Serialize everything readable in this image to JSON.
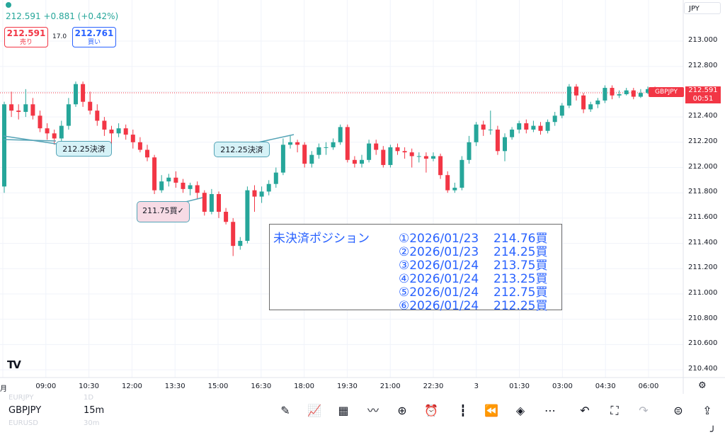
{
  "header": {
    "quote": "212.591 +0.881 (+0.42%)",
    "sell_price": "212.591",
    "sell_label": "売り",
    "spread": "17.0",
    "buy_price": "212.761",
    "buy_label": "買い",
    "currency": "JPY"
  },
  "price_tag": {
    "symbol": "GBPJPY",
    "last_price": "212.591",
    "countdown": "00:51"
  },
  "callouts": {
    "c1": "212.25決済",
    "c2": "212.25決済",
    "c3": "211.75買✓"
  },
  "positions": {
    "title": "未決済ポジション",
    "rows": [
      {
        "date": "①2026/01/23",
        "price": "214.76買"
      },
      {
        "date": "②2026/01/23",
        "price": "214.25買"
      },
      {
        "date": "③2026/01/24",
        "price": "213.75買"
      },
      {
        "date": "④2026/01/24",
        "price": "213.25買"
      },
      {
        "date": "⑤2026/01/24",
        "price": "212.75買"
      },
      {
        "date": "⑥2026/01/24",
        "price": "212.25買"
      }
    ]
  },
  "footer": {
    "watch_prev": "EURJPY",
    "watch_prev_tf": "1D",
    "symbol": "GBPJPY",
    "timeframe": "15m",
    "watch_next": "EURUSD",
    "watch_next_tf": "30m"
  },
  "toolbar_icons": [
    "draw-icon",
    "indicators-icon",
    "templates-icon",
    "compare-icon",
    "add-icon",
    "alert-icon",
    "candle-type-icon",
    "replay-icon",
    "layers-icon",
    "more-icon",
    "undo-icon",
    "fullscreen-icon",
    "redo-icon",
    "share-icon",
    "export-icon"
  ],
  "colors": {
    "up": "#26a69a",
    "down": "#f23645",
    "accent": "#2962ff"
  },
  "chart_data": {
    "type": "candlestick",
    "symbol": "GBPJPY",
    "interval": "15m",
    "y_ticks": [
      "213.000",
      "212.800",
      "212.600",
      "212.400",
      "212.200",
      "212.000",
      "211.800",
      "211.600",
      "211.400",
      "211.200",
      "211.000",
      "210.800",
      "210.600",
      "210.400"
    ],
    "x_ticks": [
      "月",
      "09:00",
      "10:30",
      "12:00",
      "13:30",
      "15:00",
      "16:30",
      "18:00",
      "19:30",
      "21:00",
      "22:30",
      "3",
      "01:30",
      "03:00",
      "04:30",
      "06:00"
    ],
    "ylim": [
      210.35,
      213.2
    ],
    "last_price": 212.591,
    "candles": [
      [
        211.85,
        212.5,
        212.52,
        211.8
      ],
      [
        212.5,
        212.45,
        212.6,
        212.4
      ],
      [
        212.45,
        212.44,
        212.5,
        212.38
      ],
      [
        212.44,
        212.5,
        212.62,
        212.4
      ],
      [
        212.5,
        212.41,
        212.55,
        212.38
      ],
      [
        212.41,
        212.31,
        212.45,
        212.28
      ],
      [
        212.31,
        212.27,
        212.35,
        212.22
      ],
      [
        212.27,
        212.23,
        212.3,
        212.18
      ],
      [
        212.23,
        212.33,
        212.37,
        212.2
      ],
      [
        212.33,
        212.5,
        212.55,
        212.3
      ],
      [
        212.5,
        212.66,
        212.68,
        212.48
      ],
      [
        212.66,
        212.52,
        212.68,
        212.48
      ],
      [
        212.52,
        212.45,
        212.6,
        212.42
      ],
      [
        212.45,
        212.37,
        212.5,
        212.33
      ],
      [
        212.37,
        212.3,
        212.4,
        212.25
      ],
      [
        212.3,
        212.27,
        212.33,
        212.18
      ],
      [
        212.27,
        212.31,
        212.35,
        212.24
      ],
      [
        212.31,
        212.26,
        212.34,
        212.22
      ],
      [
        212.26,
        212.2,
        212.3,
        212.15
      ],
      [
        212.2,
        212.14,
        212.24,
        212.12
      ],
      [
        212.14,
        212.08,
        212.18,
        212.05
      ],
      [
        212.08,
        211.82,
        212.1,
        211.79
      ],
      [
        211.82,
        211.89,
        211.94,
        211.8
      ],
      [
        211.89,
        211.92,
        211.95,
        211.85
      ],
      [
        211.92,
        211.88,
        211.97,
        211.84
      ],
      [
        211.88,
        211.83,
        211.91,
        211.8
      ],
      [
        211.83,
        211.86,
        211.88,
        211.78
      ],
      [
        211.86,
        211.8,
        211.89,
        211.75
      ],
      [
        211.8,
        211.65,
        211.82,
        211.62
      ],
      [
        211.65,
        211.79,
        211.83,
        211.63
      ],
      [
        211.79,
        211.65,
        211.81,
        211.6
      ],
      [
        211.65,
        211.57,
        211.68,
        211.55
      ],
      [
        211.57,
        211.38,
        211.6,
        211.3
      ],
      [
        211.38,
        211.42,
        211.45,
        211.35
      ],
      [
        211.42,
        211.82,
        211.85,
        211.4
      ],
      [
        211.82,
        211.77,
        211.86,
        211.65
      ],
      [
        211.77,
        211.81,
        211.85,
        211.72
      ],
      [
        211.81,
        211.87,
        211.9,
        211.78
      ],
      [
        211.87,
        211.96,
        212.0,
        211.84
      ],
      [
        211.96,
        212.18,
        212.23,
        211.94
      ],
      [
        212.18,
        212.2,
        212.25,
        212.15
      ],
      [
        212.2,
        212.18,
        212.22,
        212.12
      ],
      [
        212.18,
        212.03,
        212.2,
        212.0
      ],
      [
        212.03,
        212.1,
        212.13,
        212.0
      ],
      [
        212.1,
        212.16,
        212.19,
        212.07
      ],
      [
        212.16,
        212.16,
        212.2,
        212.1
      ],
      [
        212.16,
        212.2,
        212.23,
        212.14
      ],
      [
        212.2,
        212.32,
        212.34,
        212.18
      ],
      [
        212.32,
        212.06,
        212.34,
        212.04
      ],
      [
        212.06,
        212.03,
        212.09,
        212.0
      ],
      [
        212.03,
        212.06,
        212.1,
        212.0
      ],
      [
        212.06,
        212.19,
        212.22,
        212.04
      ],
      [
        212.19,
        212.14,
        212.22,
        212.1
      ],
      [
        212.14,
        212.02,
        212.17,
        212.0
      ],
      [
        212.02,
        212.16,
        212.18,
        212.0
      ],
      [
        212.16,
        212.13,
        212.19,
        212.1
      ],
      [
        212.13,
        212.12,
        212.16,
        212.07
      ],
      [
        212.12,
        212.09,
        212.15,
        212.0
      ],
      [
        212.09,
        212.09,
        212.12,
        212.04
      ],
      [
        212.09,
        212.07,
        212.12,
        211.96
      ],
      [
        212.07,
        212.09,
        212.12,
        212.05
      ],
      [
        212.09,
        211.94,
        212.11,
        211.91
      ],
      [
        211.94,
        211.82,
        211.97,
        211.8
      ],
      [
        211.82,
        211.84,
        211.88,
        211.8
      ],
      [
        211.84,
        212.06,
        212.09,
        211.82
      ],
      [
        212.06,
        212.2,
        212.25,
        212.03
      ],
      [
        212.2,
        212.34,
        212.36,
        212.17
      ],
      [
        212.34,
        212.3,
        212.37,
        212.25
      ],
      [
        212.3,
        212.3,
        212.45,
        212.26
      ],
      [
        212.3,
        212.13,
        212.33,
        212.1
      ],
      [
        212.13,
        212.24,
        212.27,
        212.05
      ],
      [
        212.24,
        212.3,
        212.32,
        212.22
      ],
      [
        212.3,
        212.35,
        212.37,
        212.27
      ],
      [
        212.35,
        212.3,
        212.38,
        212.27
      ],
      [
        212.3,
        212.33,
        212.37,
        212.28
      ],
      [
        212.33,
        212.29,
        212.36,
        212.26
      ],
      [
        212.29,
        212.36,
        212.38,
        212.27
      ],
      [
        212.36,
        212.41,
        212.44,
        212.33
      ],
      [
        212.41,
        212.49,
        212.51,
        212.39
      ],
      [
        212.49,
        212.64,
        212.66,
        212.47
      ],
      [
        212.64,
        212.57,
        212.66,
        212.53
      ],
      [
        212.57,
        212.46,
        212.59,
        212.43
      ],
      [
        212.46,
        212.5,
        212.52,
        212.44
      ],
      [
        212.5,
        212.53,
        212.55,
        212.47
      ],
      [
        212.53,
        212.63,
        212.65,
        212.51
      ],
      [
        212.63,
        212.57,
        212.65,
        212.54
      ],
      [
        212.57,
        212.58,
        212.61,
        212.55
      ],
      [
        212.58,
        212.61,
        212.63,
        212.57
      ],
      [
        212.61,
        212.56,
        212.63,
        212.54
      ],
      [
        212.56,
        212.59,
        212.62,
        212.55
      ],
      [
        212.59,
        212.62,
        212.64,
        212.58
      ],
      [
        212.62,
        212.6,
        212.64,
        212.57
      ],
      [
        212.6,
        212.59,
        212.63,
        212.57
      ]
    ]
  }
}
